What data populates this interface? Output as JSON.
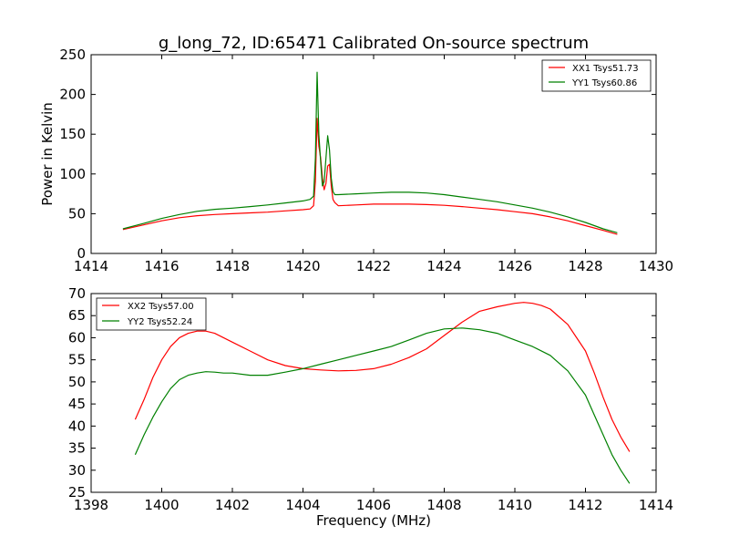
{
  "figure": {
    "title": "g_long_72, ID:65471 Calibrated On-source spectrum",
    "xlabel": "Frequency (MHz)"
  },
  "chart_data": [
    {
      "type": "line",
      "title": "g_long_72, ID:65471 Calibrated On-source spectrum",
      "xlabel": "",
      "ylabel": "Power in Kelvin",
      "xlim": [
        1414,
        1430
      ],
      "ylim": [
        0,
        250
      ],
      "xticks": [
        1414,
        1416,
        1418,
        1420,
        1422,
        1424,
        1426,
        1428,
        1430
      ],
      "yticks": [
        0,
        50,
        100,
        150,
        200,
        250
      ],
      "legend_position": "top-right",
      "series": [
        {
          "name": "XX1 Tsys51.73",
          "color": "#ff0000",
          "x": [
            1414.9,
            1415.5,
            1416.0,
            1416.5,
            1417.0,
            1417.5,
            1418.0,
            1418.5,
            1419.0,
            1419.5,
            1420.0,
            1420.2,
            1420.3,
            1420.35,
            1420.4,
            1420.45,
            1420.5,
            1420.55,
            1420.6,
            1420.65,
            1420.7,
            1420.75,
            1420.8,
            1420.85,
            1420.9,
            1421.0,
            1421.5,
            1422.0,
            1422.5,
            1423.0,
            1423.5,
            1424.0,
            1424.5,
            1425.0,
            1425.5,
            1426.0,
            1426.5,
            1427.0,
            1427.5,
            1428.0,
            1428.5,
            1428.9
          ],
          "y": [
            30,
            36,
            41,
            45,
            47.5,
            49,
            50,
            51,
            52,
            53.5,
            55,
            56,
            60,
            90,
            170,
            135,
            120,
            95,
            80,
            88,
            110,
            112,
            85,
            68,
            64,
            60,
            61,
            62,
            62,
            62,
            61.5,
            60.5,
            59,
            57,
            55,
            52.5,
            50,
            46,
            41,
            35,
            29,
            24
          ]
        },
        {
          "name": "YY1 Tsys60.86",
          "color": "#008000",
          "x": [
            1414.9,
            1415.5,
            1416.0,
            1416.5,
            1417.0,
            1417.5,
            1418.0,
            1418.5,
            1419.0,
            1419.5,
            1420.0,
            1420.2,
            1420.3,
            1420.35,
            1420.4,
            1420.45,
            1420.5,
            1420.55,
            1420.6,
            1420.65,
            1420.7,
            1420.75,
            1420.8,
            1420.85,
            1420.9,
            1421.0,
            1421.5,
            1422.0,
            1422.5,
            1423.0,
            1423.5,
            1424.0,
            1424.5,
            1425.0,
            1425.5,
            1426.0,
            1426.5,
            1427.0,
            1427.5,
            1428.0,
            1428.5,
            1428.9
          ],
          "y": [
            31,
            38,
            44,
            49,
            53,
            55.5,
            57,
            59,
            61,
            63.5,
            66,
            68,
            72,
            120,
            228,
            150,
            115,
            85,
            90,
            120,
            148,
            130,
            95,
            78,
            74,
            74,
            75,
            76,
            77,
            77,
            76,
            74,
            71,
            68,
            65,
            61,
            57,
            52,
            46,
            39,
            31,
            26
          ]
        }
      ]
    },
    {
      "type": "line",
      "title": "",
      "xlabel": "Frequency (MHz)",
      "ylabel": "",
      "xlim": [
        1398,
        1414
      ],
      "ylim": [
        25,
        70
      ],
      "xticks": [
        1398,
        1400,
        1402,
        1404,
        1406,
        1408,
        1410,
        1412,
        1414
      ],
      "yticks": [
        25,
        30,
        35,
        40,
        45,
        50,
        55,
        60,
        65,
        70
      ],
      "legend_position": "top-left",
      "series": [
        {
          "name": "XX2 Tsys57.00",
          "color": "#ff0000",
          "x": [
            1399.25,
            1399.5,
            1399.75,
            1400.0,
            1400.25,
            1400.5,
            1400.75,
            1401.0,
            1401.25,
            1401.5,
            1401.75,
            1402.0,
            1402.5,
            1403.0,
            1403.5,
            1404.0,
            1404.5,
            1405.0,
            1405.5,
            1406.0,
            1406.5,
            1407.0,
            1407.5,
            1408.0,
            1408.5,
            1409.0,
            1409.5,
            1410.0,
            1410.25,
            1410.5,
            1410.75,
            1411.0,
            1411.5,
            1412.0,
            1412.25,
            1412.5,
            1412.75,
            1413.0,
            1413.25
          ],
          "y": [
            41.5,
            46,
            51,
            55,
            58,
            60,
            61,
            61.5,
            61.5,
            61,
            60,
            59,
            57,
            55,
            53.7,
            53,
            52.7,
            52.5,
            52.6,
            53,
            54,
            55.5,
            57.5,
            60.5,
            63.5,
            66,
            67,
            67.8,
            68,
            67.8,
            67.3,
            66.5,
            63,
            57,
            52,
            46.5,
            41.5,
            37.5,
            34.2
          ]
        },
        {
          "name": "YY2 Tsys52.24",
          "color": "#008000",
          "x": [
            1399.25,
            1399.5,
            1399.75,
            1400.0,
            1400.25,
            1400.5,
            1400.75,
            1401.0,
            1401.25,
            1401.5,
            1401.75,
            1402.0,
            1402.5,
            1403.0,
            1403.5,
            1404.0,
            1404.5,
            1405.0,
            1405.5,
            1406.0,
            1406.5,
            1407.0,
            1407.5,
            1408.0,
            1408.5,
            1409.0,
            1409.5,
            1410.0,
            1410.5,
            1411.0,
            1411.5,
            1412.0,
            1412.25,
            1412.5,
            1412.75,
            1413.0,
            1413.25
          ],
          "y": [
            33.5,
            38,
            42,
            45.5,
            48.5,
            50.5,
            51.5,
            52,
            52.3,
            52.2,
            52,
            52,
            51.5,
            51.5,
            52.2,
            53,
            54,
            55,
            56,
            57,
            58,
            59.5,
            61,
            62,
            62.2,
            61.8,
            61,
            59.5,
            58,
            56,
            52.5,
            47,
            42.5,
            38,
            33.5,
            30,
            27
          ]
        }
      ]
    }
  ]
}
